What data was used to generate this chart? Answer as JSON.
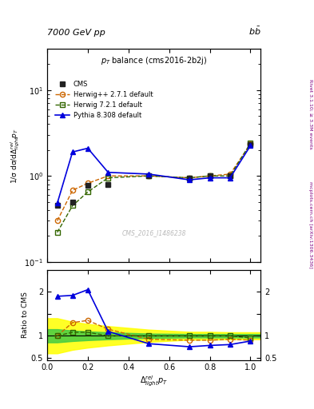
{
  "title_top": "7000 GeV pp",
  "title_top_right": "b$\\bar{b}$",
  "plot_title": "$p_T$ balance (cms2016-2b2j)",
  "watermark": "CMS_2016_I1486238",
  "right_label": "Rivet 3.1.10; ≥ 3.3M events",
  "right_label2": "mcplots.cern.ch [arXiv:1306.3436]",
  "ylabel_main": "1/σ dσ/dΔ$^{rel}_{light}p_T$",
  "ylabel_ratio": "Ratio to CMS",
  "xlabel": "$\\Delta^{rel}_{light}p_T$",
  "xlim": [
    0.0,
    1.05
  ],
  "ylim_main": [
    0.1,
    30
  ],
  "ylim_ratio": [
    0.45,
    2.5
  ],
  "x_cms": [
    0.05,
    0.125,
    0.2,
    0.3,
    0.5,
    0.7,
    0.8,
    0.9,
    1.0
  ],
  "y_cms": [
    0.45,
    0.5,
    0.78,
    0.8,
    1.0,
    0.95,
    1.0,
    1.0,
    2.3
  ],
  "x_herwig1": [
    0.05,
    0.125,
    0.2,
    0.3,
    0.5,
    0.7,
    0.8,
    0.9,
    1.0
  ],
  "y_herwig1": [
    0.3,
    0.68,
    0.82,
    1.0,
    1.0,
    0.95,
    1.0,
    1.05,
    2.35
  ],
  "x_herwig2": [
    0.05,
    0.125,
    0.2,
    0.3,
    0.5,
    0.7,
    0.8,
    0.9,
    1.0
  ],
  "y_herwig2": [
    0.22,
    0.45,
    0.65,
    0.95,
    1.0,
    0.95,
    1.0,
    1.0,
    2.4
  ],
  "x_pythia": [
    0.05,
    0.125,
    0.2,
    0.3,
    0.5,
    0.7,
    0.8,
    0.9,
    1.0
  ],
  "y_pythia": [
    0.48,
    1.9,
    2.1,
    1.1,
    1.05,
    0.9,
    0.95,
    0.95,
    2.25
  ],
  "x_ratio_herwig1": [
    0.05,
    0.125,
    0.2,
    0.3,
    0.5,
    0.7,
    0.8,
    0.9,
    1.0
  ],
  "y_ratio_herwig1": [
    1.0,
    1.3,
    1.35,
    1.15,
    0.92,
    0.9,
    0.9,
    0.92,
    0.9
  ],
  "x_ratio_herwig2": [
    0.05,
    0.125,
    0.2,
    0.3,
    0.5,
    0.7,
    0.8,
    0.9,
    1.0
  ],
  "y_ratio_herwig2": [
    1.0,
    1.08,
    1.08,
    1.0,
    1.0,
    1.0,
    1.0,
    1.0,
    0.95
  ],
  "x_ratio_pythia": [
    0.05,
    0.125,
    0.2,
    0.3,
    0.5,
    0.7,
    0.8,
    0.9,
    1.0
  ],
  "y_ratio_pythia": [
    1.9,
    1.92,
    2.05,
    1.1,
    0.82,
    0.75,
    0.78,
    0.8,
    0.88
  ],
  "cms_color": "#222222",
  "herwig1_color": "#cc6600",
  "herwig2_color": "#336600",
  "pythia_color": "#0000dd",
  "band_yellow_x": [
    0.0,
    0.05,
    0.125,
    0.2,
    0.3,
    0.5,
    0.7,
    0.8,
    0.9,
    1.05
  ],
  "band_yellow_low": [
    0.6,
    0.6,
    0.68,
    0.73,
    0.78,
    0.86,
    0.91,
    0.91,
    0.92,
    0.92
  ],
  "band_yellow_high": [
    1.4,
    1.4,
    1.32,
    1.27,
    1.22,
    1.14,
    1.09,
    1.09,
    1.08,
    1.08
  ],
  "band_green_x": [
    0.0,
    0.05,
    0.125,
    0.2,
    0.3,
    0.5,
    0.7,
    0.8,
    0.9,
    1.05
  ],
  "band_green_low": [
    0.85,
    0.85,
    0.88,
    0.9,
    0.92,
    0.95,
    0.96,
    0.96,
    0.96,
    0.96
  ],
  "band_green_high": [
    1.15,
    1.15,
    1.12,
    1.1,
    1.08,
    1.05,
    1.04,
    1.04,
    1.04,
    1.04
  ]
}
